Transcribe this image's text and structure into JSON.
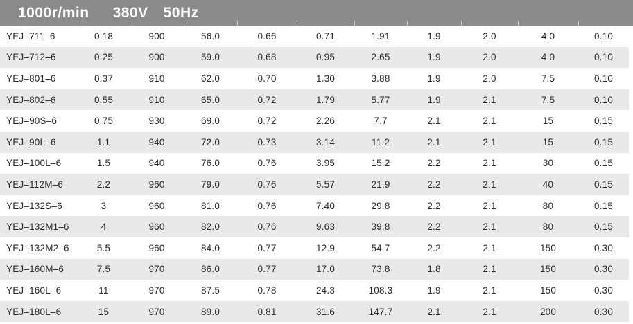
{
  "header": {
    "parts": [
      "1000r/min",
      "380V",
      "50Hz"
    ]
  },
  "colors": {
    "header_bg": "#8b8b8b",
    "header_text": "#ffffff",
    "stripe_bg": "#e9e9e8",
    "body_text": "#2e2a28",
    "page_bg": "#ffffff"
  },
  "table": {
    "rows": [
      {
        "model": "YEJ–711–6",
        "values": [
          "0.18",
          "900",
          "56.0",
          "0.66",
          "0.71",
          "1.91",
          "1.9",
          "2.0",
          "4.0",
          "0.10"
        ]
      },
      {
        "model": "YEJ–712–6",
        "values": [
          "0.25",
          "900",
          "59.0",
          "0.68",
          "0.95",
          "2.65",
          "1.9",
          "2.0",
          "4.0",
          "0.10"
        ]
      },
      {
        "model": "YEJ–801–6",
        "values": [
          "0.37",
          "910",
          "62.0",
          "0.70",
          "1.30",
          "3.88",
          "1.9",
          "2.0",
          "7.5",
          "0.10"
        ]
      },
      {
        "model": "YEJ–802–6",
        "values": [
          "0.55",
          "910",
          "65.0",
          "0.72",
          "1.79",
          "5.77",
          "1.9",
          "2.1",
          "7.5",
          "0.10"
        ]
      },
      {
        "model": "YEJ–90S–6",
        "values": [
          "0.75",
          "930",
          "69.0",
          "0.72",
          "2.26",
          "7.7",
          "2.1",
          "2.1",
          "15",
          "0.15"
        ]
      },
      {
        "model": "YEJ–90L–6",
        "values": [
          "1.1",
          "940",
          "72.0",
          "0.73",
          "3.14",
          "11.2",
          "2.1",
          "2.1",
          "15",
          "0.15"
        ]
      },
      {
        "model": "YEJ–100L–6",
        "values": [
          "1.5",
          "940",
          "76.0",
          "0.76",
          "3.95",
          "15.2",
          "2.2",
          "2.1",
          "30",
          "0.15"
        ]
      },
      {
        "model": "YEJ–112M–6",
        "values": [
          "2.2",
          "960",
          "79.0",
          "0.76",
          "5.57",
          "21.9",
          "2.2",
          "2.1",
          "40",
          "0.15"
        ]
      },
      {
        "model": "YEJ–132S–6",
        "values": [
          "3",
          "960",
          "81.0",
          "0.76",
          "7.40",
          "29.8",
          "2.2",
          "2.1",
          "80",
          "0.15"
        ]
      },
      {
        "model": "YEJ–132M1–6",
        "values": [
          "4",
          "960",
          "82.0",
          "0.76",
          "9.63",
          "39.8",
          "2.2",
          "2.1",
          "80",
          "0.15"
        ]
      },
      {
        "model": "YEJ–132M2–6",
        "values": [
          "5.5",
          "960",
          "84.0",
          "0.77",
          "12.9",
          "54.7",
          "2.2",
          "2.1",
          "150",
          "0.30"
        ]
      },
      {
        "model": "YEJ–160M–6",
        "values": [
          "7.5",
          "970",
          "86.0",
          "0.77",
          "17.0",
          "73.8",
          "1.8",
          "2.1",
          "150",
          "0.30"
        ]
      },
      {
        "model": "YEJ–160L–6",
        "values": [
          "11",
          "970",
          "87.5",
          "0.78",
          "24.3",
          "108.3",
          "1.9",
          "2.1",
          "150",
          "0.30"
        ]
      },
      {
        "model": "YEJ–180L–6",
        "values": [
          "15",
          "970",
          "89.0",
          "0.81",
          "31.6",
          "147.7",
          "2.1",
          "2.1",
          "200",
          "0.30"
        ]
      }
    ]
  }
}
